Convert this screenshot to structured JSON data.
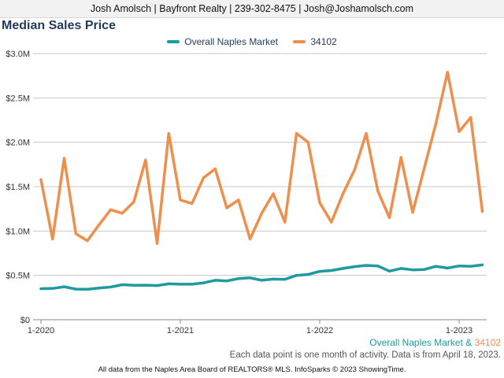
{
  "header": {
    "text": "Josh Amolsch | Bayfront Realty | 239-302-8475 | Josh@Joshamolsch.com"
  },
  "chart_data": {
    "type": "line",
    "title": "Median Sales Price",
    "xlabel": "",
    "ylabel": "",
    "ylim": [
      0,
      3000000
    ],
    "y_ticks": [
      "$0",
      "$0.5M",
      "$1.0M",
      "$1.5M",
      "$2.0M",
      "$2.5M",
      "$3.0M"
    ],
    "x_ticks": [
      "1-2020",
      "1-2021",
      "1-2022",
      "1-2023"
    ],
    "x_tick_index": [
      0,
      12,
      24,
      36
    ],
    "x_start": "2020-01",
    "grid": true,
    "legend_position": "top-center",
    "series": [
      {
        "name": "Overall Naples Market",
        "color": "#1f9aa0",
        "values": [
          350000,
          352000,
          372000,
          345000,
          343000,
          358000,
          368000,
          395000,
          388000,
          390000,
          385000,
          405000,
          400000,
          400000,
          415000,
          445000,
          438000,
          463000,
          472000,
          445000,
          458000,
          455000,
          500000,
          510000,
          545000,
          555000,
          578000,
          598000,
          612000,
          606000,
          548000,
          578000,
          562000,
          566000,
          602000,
          582000,
          606000,
          603000,
          618000
        ]
      },
      {
        "name": "34102",
        "color": "#ee8f4e",
        "values": [
          1580000,
          910000,
          1820000,
          970000,
          890000,
          1070000,
          1240000,
          1200000,
          1330000,
          1800000,
          860000,
          2100000,
          1350000,
          1310000,
          1600000,
          1700000,
          1260000,
          1350000,
          910000,
          1200000,
          1420000,
          1100000,
          2100000,
          2000000,
          1320000,
          1100000,
          1420000,
          1690000,
          2100000,
          1450000,
          1150000,
          1830000,
          1210000,
          1710000,
          2210000,
          2790000,
          2120000,
          2280000,
          1220000
        ]
      }
    ]
  },
  "captions": {
    "series_prefix": "Overall Naples Market",
    "amp": " & ",
    "series_suffix": "34102",
    "note": "Each data point is one month of activity. Data is from April 18, 2023.",
    "source": "All data from the Naples Area Board of REALTORS® MLS. InfoSparks © 2023 ShowingTime."
  }
}
